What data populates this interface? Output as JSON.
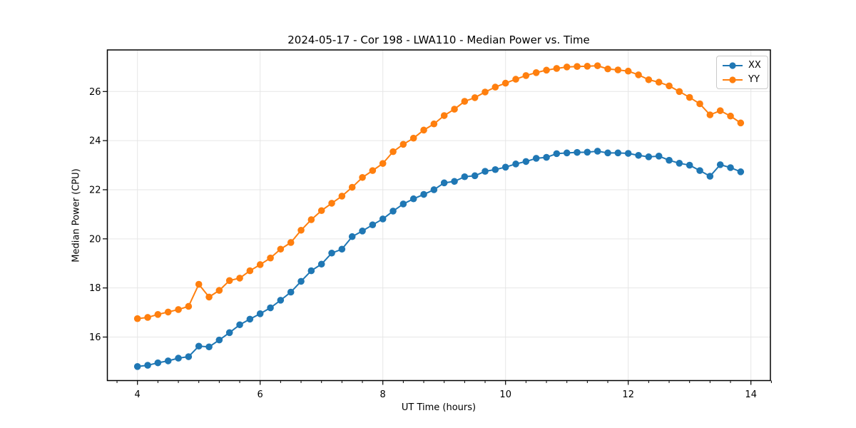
{
  "chart_data": {
    "type": "line",
    "title": "2024-05-17 - Cor 198 - LWA110 - Median Power vs. Time",
    "xlabel": "UT Time (hours)",
    "ylabel": "Median Power (CPU)",
    "xlim": [
      3.51,
      14.32
    ],
    "ylim": [
      14.23,
      27.69
    ],
    "xticks": [
      4,
      6,
      8,
      10,
      12,
      14
    ],
    "yticks": [
      16,
      18,
      20,
      22,
      24,
      26
    ],
    "x_minor_tick_step": 0.33333,
    "grid": true,
    "legend_position": "upper right",
    "x": [
      4.0,
      4.167,
      4.333,
      4.5,
      4.667,
      4.833,
      5.0,
      5.167,
      5.333,
      5.5,
      5.667,
      5.833,
      6.0,
      6.167,
      6.333,
      6.5,
      6.667,
      6.833,
      7.0,
      7.167,
      7.333,
      7.5,
      7.667,
      7.833,
      8.0,
      8.167,
      8.333,
      8.5,
      8.667,
      8.833,
      9.0,
      9.167,
      9.333,
      9.5,
      9.667,
      9.833,
      10.0,
      10.167,
      10.333,
      10.5,
      10.667,
      10.833,
      11.0,
      11.167,
      11.333,
      11.5,
      11.667,
      11.833,
      12.0,
      12.167,
      12.333,
      12.5,
      12.667,
      12.833,
      13.0,
      13.167,
      13.333,
      13.5,
      13.667,
      13.833
    ],
    "series": [
      {
        "name": "XX",
        "color": "#1f77b4",
        "values": [
          14.8,
          14.85,
          14.95,
          15.03,
          15.14,
          15.2,
          15.63,
          15.6,
          15.88,
          16.18,
          16.5,
          16.73,
          16.95,
          17.19,
          17.5,
          17.83,
          18.27,
          18.7,
          18.97,
          19.42,
          19.58,
          20.09,
          20.32,
          20.57,
          20.81,
          21.13,
          21.42,
          21.63,
          21.81,
          22.0,
          22.28,
          22.34,
          22.53,
          22.57,
          22.75,
          22.82,
          22.92,
          23.05,
          23.15,
          23.28,
          23.32,
          23.47,
          23.5,
          23.52,
          23.53,
          23.57,
          23.5,
          23.5,
          23.48,
          23.4,
          23.34,
          23.37,
          23.2,
          23.08,
          23.0,
          22.78,
          22.55,
          23.02,
          22.9,
          22.73
        ]
      },
      {
        "name": "YY",
        "color": "#ff7f0e",
        "values": [
          16.75,
          16.8,
          16.92,
          17.02,
          17.12,
          17.25,
          18.15,
          17.63,
          17.9,
          18.3,
          18.4,
          18.7,
          18.95,
          19.22,
          19.58,
          19.85,
          20.35,
          20.78,
          21.15,
          21.45,
          21.74,
          22.1,
          22.5,
          22.78,
          23.07,
          23.55,
          23.85,
          24.1,
          24.43,
          24.68,
          25.02,
          25.28,
          25.6,
          25.75,
          25.98,
          26.18,
          26.34,
          26.5,
          26.65,
          26.77,
          26.87,
          26.94,
          27.0,
          27.02,
          27.03,
          27.05,
          26.92,
          26.88,
          26.83,
          26.68,
          26.48,
          26.38,
          26.23,
          26.0,
          25.76,
          25.5,
          25.05,
          25.22,
          25.0,
          24.72
        ]
      }
    ],
    "colors": {
      "grid": "#e6e6e6",
      "spine": "#000000",
      "background": "#ffffff"
    }
  }
}
